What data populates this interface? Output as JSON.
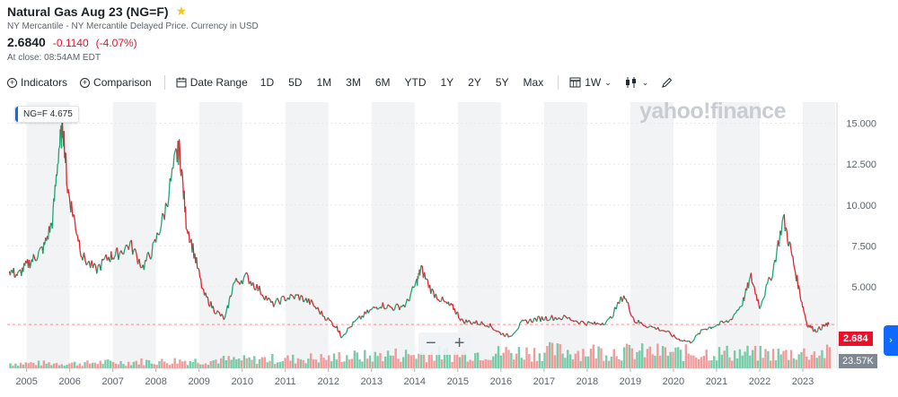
{
  "header": {
    "title": "Natural Gas Aug 23 (NG=F)",
    "exchange": "NY Mercantile - NY Mercantile Delayed Price. Currency in USD",
    "price": "2.6840",
    "change": "-0.1140",
    "change_pct": "(-4.07%)",
    "close_time": "At close: 08:54AM EDT",
    "star_icon": "star-icon",
    "colors": {
      "negative": "#eb0f29",
      "star": "#f5c518"
    }
  },
  "toolbar": {
    "indicators": "Indicators",
    "comparison": "Comparison",
    "date_range": "Date Range",
    "ranges": [
      "1D",
      "5D",
      "1M",
      "3M",
      "6M",
      "YTD",
      "1Y",
      "2Y",
      "5Y",
      "Max"
    ],
    "interval": "1W"
  },
  "chart_data": {
    "type": "line",
    "title": "",
    "legend": {
      "symbol": "NG=F",
      "value": "4.675"
    },
    "watermark": "yahoo!finance",
    "x_ticks": [
      "2005",
      "2006",
      "2007",
      "2008",
      "2009",
      "2010",
      "2011",
      "2012",
      "2013",
      "2014",
      "2015",
      "2016",
      "2017",
      "2018",
      "2019",
      "2020",
      "2021",
      "2022",
      "2023"
    ],
    "y_ticks": [
      "15.000",
      "12.500",
      "10.000",
      "7.500",
      "5.000"
    ],
    "ylim": [
      0,
      16.3
    ],
    "xlim": [
      2004.55,
      2023.75
    ],
    "last_price": "2.684",
    "last_volume": "23.57K",
    "series": [
      {
        "x": [
          2004.6,
          2004.8,
          2005.0,
          2005.2,
          2005.4,
          2005.6,
          2005.75,
          2005.85,
          2005.95,
          2006.1,
          2006.3,
          2006.6,
          2006.9,
          2007.1,
          2007.4,
          2007.7,
          2007.95,
          2008.2,
          2008.45,
          2008.55,
          2008.7,
          2008.9,
          2009.1,
          2009.35,
          2009.6,
          2009.8,
          2010.1,
          2010.4,
          2010.7,
          2011.0,
          2011.3,
          2011.6,
          2011.9,
          2012.2,
          2012.3,
          2012.6,
          2012.9,
          2013.2,
          2013.5,
          2013.8,
          2014.05,
          2014.15,
          2014.4,
          2014.7,
          2014.9,
          2015.1,
          2015.4,
          2015.7,
          2015.95,
          2016.2,
          2016.5,
          2016.8,
          2017.1,
          2017.5,
          2017.9,
          2018.2,
          2018.5,
          2018.85,
          2019.1,
          2019.4,
          2019.8,
          2020.1,
          2020.4,
          2020.7,
          2020.95,
          2021.3,
          2021.6,
          2021.8,
          2022.0,
          2022.3,
          2022.55,
          2022.75,
          2022.95,
          2023.1,
          2023.3,
          2023.5,
          2023.6
        ],
        "values": [
          6.0,
          5.7,
          6.3,
          6.8,
          7.4,
          9.0,
          13.5,
          14.8,
          11.0,
          9.2,
          6.8,
          6.0,
          6.8,
          7.0,
          7.6,
          6.2,
          7.4,
          9.5,
          12.8,
          13.4,
          9.0,
          6.9,
          4.6,
          3.6,
          3.0,
          5.2,
          5.6,
          4.8,
          3.9,
          4.3,
          4.4,
          4.0,
          3.2,
          2.5,
          1.95,
          2.8,
          3.4,
          3.9,
          3.7,
          3.9,
          5.3,
          6.1,
          4.7,
          4.0,
          3.7,
          2.9,
          2.8,
          2.7,
          2.2,
          1.95,
          2.8,
          3.0,
          3.1,
          3.1,
          2.8,
          2.7,
          2.9,
          4.5,
          2.9,
          2.6,
          2.3,
          1.8,
          1.6,
          2.4,
          2.6,
          2.9,
          4.0,
          5.6,
          3.8,
          5.9,
          9.2,
          6.9,
          4.4,
          2.7,
          2.3,
          2.6,
          2.68
        ]
      }
    ],
    "volume": {
      "x_start": 2004.6,
      "x_end": 2023.6,
      "shape": [
        0.3,
        0.3,
        0.35,
        0.4,
        0.45,
        0.5,
        0.55,
        0.6,
        0.7,
        0.8,
        0.85,
        0.9,
        0.95,
        1.0,
        1.0,
        0.95,
        0.9,
        0.9,
        0.85,
        0.9
      ]
    }
  }
}
